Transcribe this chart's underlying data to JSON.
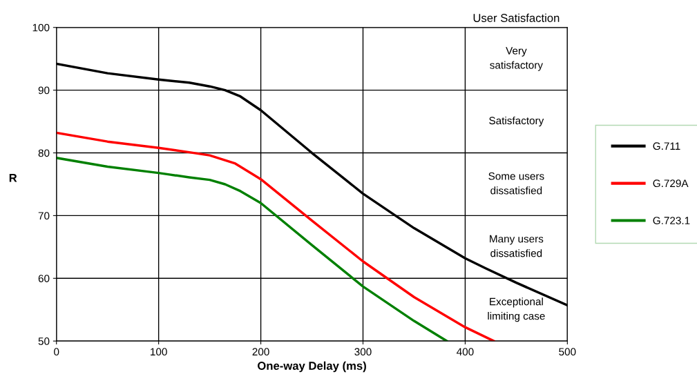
{
  "chart_data": {
    "type": "line",
    "xlabel": "One-way Delay (ms)",
    "ylabel": "R",
    "annotations": [
      "User Satisfaction",
      "Very\nsatisfactory",
      "Satisfactory",
      "Some users\ndissatisfied",
      "Many users\ndissatisfied",
      "Exceptional\nlimiting case"
    ],
    "xlim": [
      0,
      500
    ],
    "ylim": [
      50,
      100
    ],
    "xticks": [
      0,
      100,
      200,
      300,
      400,
      500
    ],
    "yticks": [
      50,
      60,
      70,
      80,
      90,
      100
    ],
    "grid": true,
    "legend": "right",
    "marker": "none",
    "line_style": "solid",
    "series": [
      {
        "name": "G.711",
        "color": "#000000",
        "x": [
          0,
          50,
          100,
          130,
          150,
          165,
          180,
          200,
          250,
          300,
          350,
          400,
          420,
          450,
          500
        ],
        "values": [
          94.2,
          92.7,
          91.7,
          91.2,
          90.6,
          90,
          89,
          86.8,
          80,
          73.5,
          68,
          63.2,
          61.6,
          59.3,
          55.7
        ]
      },
      {
        "name": "G.729A",
        "color": "#ff0000",
        "x": [
          0,
          50,
          100,
          130,
          150,
          175,
          200,
          250,
          300,
          350,
          400,
          428
        ],
        "values": [
          83.2,
          81.8,
          80.8,
          80.1,
          79.6,
          78.3,
          75.8,
          69.2,
          62.7,
          57,
          52.2,
          50
        ]
      },
      {
        "name": "G.723.1",
        "color": "#008000",
        "x": [
          0,
          50,
          100,
          130,
          150,
          165,
          180,
          200,
          250,
          300,
          350,
          382
        ],
        "values": [
          79.2,
          77.8,
          76.8,
          76.1,
          75.7,
          75,
          73.9,
          72,
          65.3,
          58.7,
          53.2,
          50
        ]
      }
    ]
  }
}
